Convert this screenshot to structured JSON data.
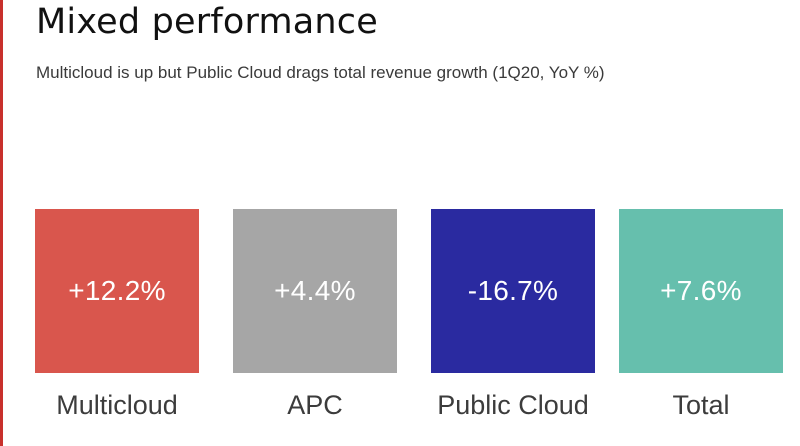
{
  "colors": {
    "accent_line": "#c8302c"
  },
  "chart_data": {
    "type": "bar",
    "title": "Mixed performance",
    "subtitle": "Multicloud is up but Public Cloud drags total revenue growth (1Q20, YoY %)",
    "categories": [
      "Multicloud",
      "APC",
      "Public Cloud",
      "Total"
    ],
    "values": [
      12.2,
      4.4,
      -16.7,
      7.6
    ],
    "value_labels": [
      "+12.2%",
      "+4.4%",
      "-16.7%",
      "+7.6%"
    ],
    "colors": [
      "#d9564d",
      "#a6a6a6",
      "#2a2aa0",
      "#66bfad"
    ]
  }
}
